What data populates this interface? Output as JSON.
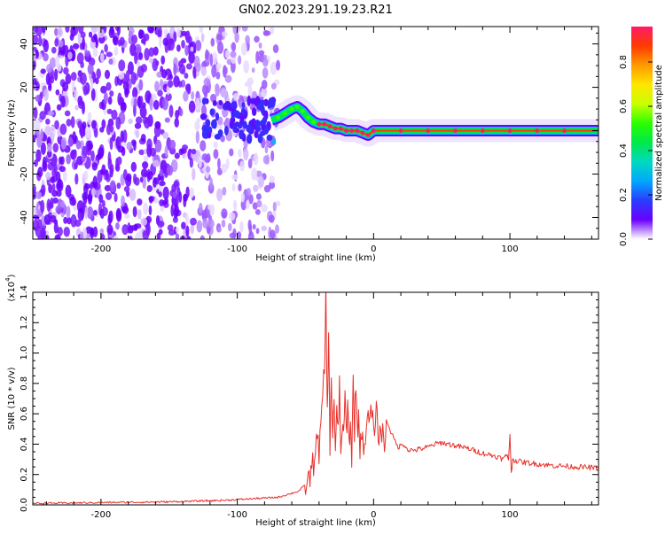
{
  "title": "GN02.2023.291.19.23.R21",
  "colorbar": {
    "label": "Normalized spectral amplitude",
    "ticks": [
      "0.0",
      "0.2",
      "0.4",
      "0.6",
      "0.8"
    ],
    "stops": [
      "#ffffff",
      "#6a00ff",
      "#2a3dff",
      "#00a8ff",
      "#00d9c0",
      "#00e84a",
      "#2bff00",
      "#c8ff00",
      "#ffe600",
      "#ff9a00",
      "#ff3a00",
      "#ff1a6a"
    ]
  },
  "chart_data": [
    {
      "type": "heatmap",
      "xlabel": "Height of straight line (km)",
      "ylabel": "Frequency (Hz)",
      "xlim": [
        -250,
        165
      ],
      "ylim": [
        -50,
        48
      ],
      "xticks": [
        -200,
        -100,
        0,
        100
      ],
      "yticks": [
        -40,
        -20,
        0,
        20,
        40
      ],
      "ridge": {
        "x": [
          -75,
          -70,
          -65,
          -60,
          -56,
          -52,
          -48,
          -44,
          -40,
          -36,
          -32,
          -28,
          -24,
          -20,
          -16,
          -12,
          -8,
          -4,
          0,
          20,
          40,
          60,
          80,
          100,
          120,
          140,
          165
        ],
        "y": [
          5,
          6,
          8,
          10,
          11,
          9,
          6,
          4,
          3,
          3,
          2,
          1,
          1,
          0,
          0,
          0,
          -1,
          -2,
          0,
          0,
          0,
          0,
          0,
          0,
          0,
          0,
          0
        ]
      },
      "noise_region_xmax": -80
    },
    {
      "type": "line",
      "xlabel": "Height of straight line (km)",
      "ylabel": "SNR (10 * v/v)",
      "y_multiplier": "(x10",
      "y_multiplier_exp": "4",
      "xlim": [
        -250,
        165
      ],
      "ylim": [
        0.0,
        1.4
      ],
      "xticks": [
        -200,
        -100,
        0,
        100
      ],
      "yticks": [
        "0.0",
        "0.2",
        "0.4",
        "0.6",
        "0.8",
        "1.0",
        "1.2",
        "1.4"
      ],
      "series": [
        {
          "color": "#e8302a",
          "x": [
            -250,
            -200,
            -150,
            -110,
            -90,
            -70,
            -55,
            -48,
            -44,
            -42,
            -40,
            -38,
            -36,
            -35,
            -34,
            -33,
            -32,
            -31,
            -30,
            -29,
            -28,
            -27,
            -26,
            -25,
            -24,
            -23,
            -22,
            -21,
            -20,
            -19,
            -18,
            -17,
            -16,
            -15,
            -14,
            -13,
            -12,
            -11,
            -10,
            -9,
            -8,
            -6,
            -4,
            -2,
            0,
            2,
            4,
            6,
            8,
            10,
            14,
            18,
            22,
            26,
            30,
            35,
            40,
            45,
            50,
            55,
            60,
            70,
            80,
            90,
            95,
            98,
            99,
            100,
            101,
            102,
            105,
            110,
            120,
            130,
            140,
            150,
            160,
            165
          ],
          "y": [
            0.01,
            0.015,
            0.02,
            0.03,
            0.04,
            0.05,
            0.09,
            0.15,
            0.28,
            0.45,
            0.35,
            0.6,
            0.9,
            1.4,
            0.6,
            1.1,
            0.4,
            0.8,
            0.5,
            0.7,
            0.35,
            0.6,
            0.45,
            0.8,
            0.3,
            0.55,
            0.4,
            0.75,
            0.45,
            0.65,
            0.4,
            0.55,
            0.3,
            0.8,
            0.5,
            0.84,
            0.45,
            0.6,
            0.38,
            0.5,
            0.4,
            0.45,
            0.55,
            0.6,
            0.5,
            0.6,
            0.45,
            0.5,
            0.4,
            0.55,
            0.45,
            0.38,
            0.4,
            0.36,
            0.36,
            0.37,
            0.38,
            0.4,
            0.41,
            0.4,
            0.39,
            0.37,
            0.34,
            0.32,
            0.3,
            0.33,
            0.3,
            0.47,
            0.2,
            0.3,
            0.29,
            0.28,
            0.27,
            0.26,
            0.255,
            0.25,
            0.245,
            0.24
          ]
        }
      ]
    }
  ]
}
